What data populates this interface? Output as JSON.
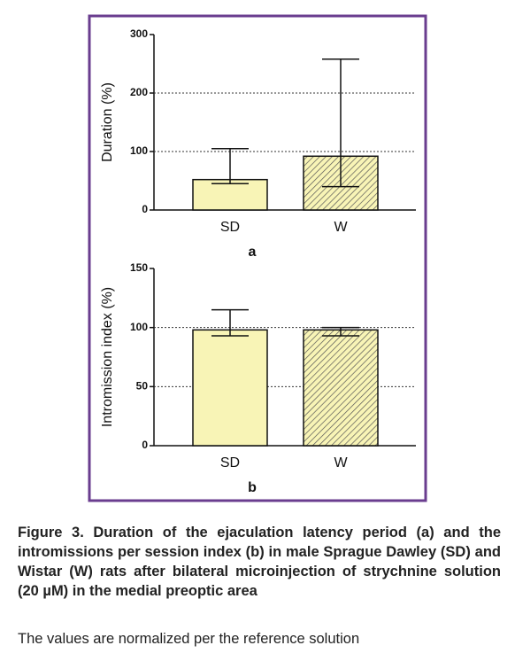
{
  "chart_data": [
    {
      "type": "bar",
      "ylabel": "Duration (%)",
      "label": "a",
      "categories": [
        "SD",
        "W"
      ],
      "values": [
        52,
        92
      ],
      "error_high": [
        105,
        258
      ],
      "error_low": [
        45,
        40
      ],
      "colors": [
        "#f8f4b6",
        "#f8f4b6"
      ],
      "hatch": [
        false,
        true
      ],
      "ylim": [
        0,
        300
      ],
      "yticks": [
        0,
        100,
        200,
        300
      ],
      "grid": true
    },
    {
      "type": "bar",
      "ylabel": "Intromission index (%)",
      "label": "b",
      "categories": [
        "SD",
        "W"
      ],
      "values": [
        98,
        98
      ],
      "error_high": [
        115,
        100
      ],
      "error_low": [
        93,
        93
      ],
      "colors": [
        "#f8f4b6",
        "#f8f4b6"
      ],
      "hatch": [
        false,
        true
      ],
      "ylim": [
        0,
        150
      ],
      "yticks": [
        0,
        50,
        100,
        150
      ],
      "grid": true
    }
  ],
  "caption": "Figure 3. Duration of the ejaculation latency period (a) and the intromissions per session index (b) in male Sprague Dawley (SD) and Wistar (W) rats after bilateral microinjection of strychnine solution (20 µM) in the medial preoptic area",
  "note": "The values are normalized per the reference solution"
}
